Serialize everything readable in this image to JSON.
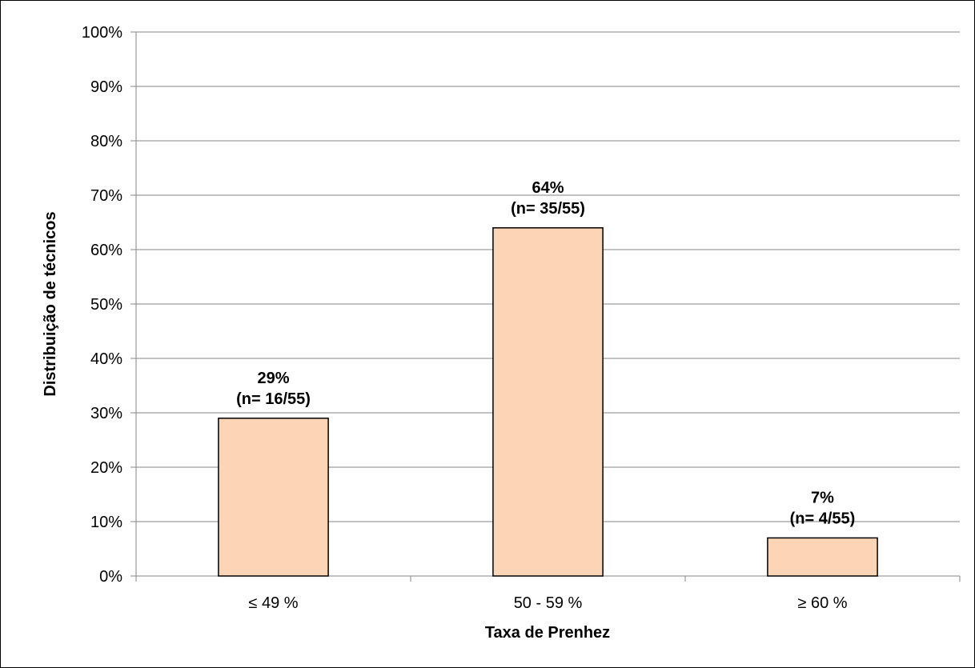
{
  "chart_data": {
    "type": "bar",
    "categories": [
      "≤ 49 %",
      "50 - 59 %",
      "≥ 60 %"
    ],
    "values": [
      29,
      64,
      7
    ],
    "value_format": "percent",
    "data_labels": [
      {
        "value": "29%",
        "count": "(n= 16/55)"
      },
      {
        "value": "64%",
        "count": "(n= 35/55)"
      },
      {
        "value": "7%",
        "count": "(n= 4/55)"
      }
    ],
    "title": "",
    "xlabel": "Taxa de Prenhez",
    "ylabel": "Distribuição de técnicos",
    "ylim": [
      0,
      100
    ],
    "yticks": [
      "0%",
      "10%",
      "20%",
      "30%",
      "40%",
      "50%",
      "60%",
      "70%",
      "80%",
      "90%",
      "100%"
    ],
    "grid": true,
    "legend": "none",
    "colors": {
      "bar_fill": "#FBD5B5",
      "bar_stroke": "#000000",
      "grid": "#868686",
      "axis": "#868686"
    }
  }
}
